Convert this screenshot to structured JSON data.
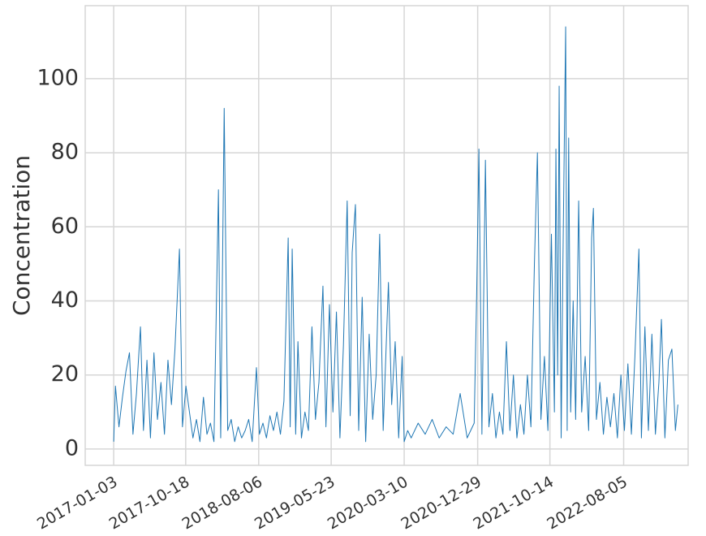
{
  "chart_data": {
    "type": "line",
    "y_label": "Concentration",
    "grid": true,
    "x": [
      "2017-01-03",
      "2017-01-10",
      "2017-01-24",
      "2017-02-07",
      "2017-02-21",
      "2017-03-07",
      "2017-03-21",
      "2017-04-04",
      "2017-04-20",
      "2017-05-02",
      "2017-05-16",
      "2017-05-30",
      "2017-06-13",
      "2017-06-27",
      "2017-07-11",
      "2017-07-25",
      "2017-08-08",
      "2017-08-22",
      "2017-09-05",
      "2017-09-23",
      "2017-10-05",
      "2017-10-19",
      "2017-11-02",
      "2017-11-16",
      "2017-11-30",
      "2017-12-14",
      "2017-12-28",
      "2018-01-11",
      "2018-01-25",
      "2018-02-08",
      "2018-02-26",
      "2018-03-07",
      "2018-03-21",
      "2018-04-04",
      "2018-04-18",
      "2018-05-02",
      "2018-05-16",
      "2018-05-30",
      "2018-06-13",
      "2018-06-27",
      "2018-07-11",
      "2018-07-28",
      "2018-08-09",
      "2018-08-23",
      "2018-09-06",
      "2018-09-20",
      "2018-10-04",
      "2018-10-18",
      "2018-11-01",
      "2018-11-15",
      "2018-12-02",
      "2018-12-10",
      "2018-12-18",
      "2019-01-01",
      "2019-01-10",
      "2019-01-24",
      "2019-02-07",
      "2019-02-21",
      "2019-03-07",
      "2019-03-21",
      "2019-04-04",
      "2019-04-20",
      "2019-05-02",
      "2019-05-16",
      "2019-05-30",
      "2019-06-13",
      "2019-06-27",
      "2019-07-11",
      "2019-07-26",
      "2019-08-07",
      "2019-08-15",
      "2019-08-28",
      "2019-09-10",
      "2019-09-24",
      "2019-10-08",
      "2019-10-22",
      "2019-11-05",
      "2019-11-19",
      "2019-12-03",
      "2019-12-17",
      "2020-01-07",
      "2020-01-20",
      "2020-02-03",
      "2020-02-17",
      "2020-03-02",
      "2020-03-10",
      "2020-03-24",
      "2020-04-07",
      "2020-05-05",
      "2020-06-02",
      "2020-06-30",
      "2020-07-28",
      "2020-08-25",
      "2020-09-22",
      "2020-10-20",
      "2020-11-17",
      "2020-12-15",
      "2020-12-25",
      "2021-01-03",
      "2021-01-15",
      "2021-01-29",
      "2021-02-12",
      "2021-02-26",
      "2021-03-12",
      "2021-03-26",
      "2021-04-09",
      "2021-04-23",
      "2021-05-07",
      "2021-05-21",
      "2021-06-04",
      "2021-06-18",
      "2021-07-02",
      "2021-07-16",
      "2021-07-30",
      "2021-08-13",
      "2021-08-25",
      "2021-09-08",
      "2021-09-22",
      "2021-10-06",
      "2021-10-20",
      "2021-11-01",
      "2021-11-07",
      "2021-11-14",
      "2021-11-20",
      "2021-11-28",
      "2021-12-05",
      "2021-12-16",
      "2021-12-22",
      "2021-12-28",
      "2022-01-05",
      "2022-01-15",
      "2022-01-25",
      "2022-02-06",
      "2022-02-18",
      "2022-03-04",
      "2022-03-18",
      "2022-03-30",
      "2022-04-06",
      "2022-04-18",
      "2022-05-02",
      "2022-05-16",
      "2022-05-30",
      "2022-06-13",
      "2022-06-27",
      "2022-07-11",
      "2022-07-25",
      "2022-08-08",
      "2022-08-22",
      "2022-09-05",
      "2022-09-19",
      "2022-10-05",
      "2022-10-15",
      "2022-10-29",
      "2022-11-12",
      "2022-11-26",
      "2022-12-10",
      "2022-12-24",
      "2023-01-03",
      "2023-01-17",
      "2023-01-31",
      "2023-02-14",
      "2023-02-28",
      "2023-03-10"
    ],
    "series": [
      {
        "color": "#1f77b4",
        "values": [
          2,
          17,
          6,
          14,
          21,
          26,
          4,
          15,
          33,
          5,
          24,
          3,
          26,
          8,
          18,
          4,
          24,
          12,
          27,
          54,
          6,
          17,
          10,
          3,
          8,
          2,
          14,
          4,
          7,
          2,
          70,
          3,
          92,
          5,
          8,
          2,
          6,
          3,
          5,
          8,
          2,
          22,
          4,
          7,
          3,
          9,
          5,
          10,
          4,
          13,
          57,
          6,
          54,
          4,
          29,
          3,
          10,
          5,
          33,
          8,
          18,
          44,
          6,
          39,
          10,
          37,
          3,
          28,
          67,
          9,
          53,
          66,
          5,
          41,
          2,
          31,
          8,
          20,
          58,
          5,
          45,
          12,
          29,
          3,
          25,
          2,
          5,
          3,
          7,
          4,
          8,
          3,
          6,
          4,
          15,
          3,
          7,
          42,
          81,
          4,
          78,
          6,
          15,
          3,
          10,
          4,
          29,
          5,
          20,
          3,
          12,
          4,
          20,
          6,
          50,
          80,
          8,
          25,
          5,
          58,
          10,
          81,
          20,
          98,
          3,
          50,
          114,
          5,
          84,
          10,
          40,
          8,
          67,
          10,
          25,
          5,
          57,
          65,
          8,
          18,
          4,
          14,
          6,
          15,
          3,
          20,
          5,
          23,
          4,
          25,
          54,
          3,
          33,
          5,
          31,
          4,
          18,
          35,
          3,
          24,
          27,
          5,
          12
        ]
      }
    ],
    "xlim": [
      "2016-09-11",
      "2023-04-20"
    ],
    "xticks": [
      "2017-01-03",
      "2017-10-18",
      "2018-08-06",
      "2019-05-23",
      "2020-03-10",
      "2020-12-29",
      "2021-10-14",
      "2022-08-05"
    ],
    "ylim": [
      -4.4,
      119.7
    ],
    "yticks": [
      0,
      20,
      40,
      60,
      80,
      100
    ]
  }
}
